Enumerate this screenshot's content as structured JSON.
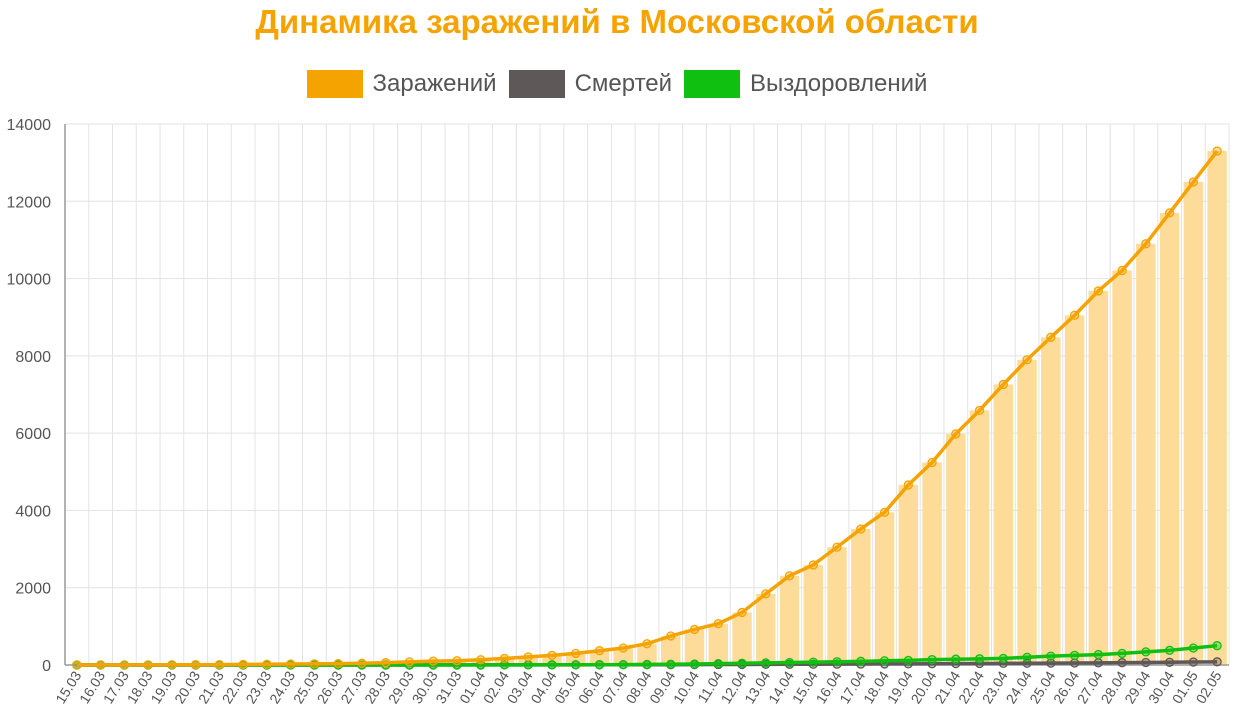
{
  "colors": {
    "title": "#f5a300",
    "infected": "#f5a300",
    "infected_bar": "#fddc9a",
    "deaths": "#5e5858",
    "recovered": "#10c010",
    "grid": "#e3e3e3",
    "axis": "#999999",
    "tick": "#555555"
  },
  "chart_data": {
    "type": "bar",
    "title": "Динамика заражений в Московской области",
    "xlabel": "",
    "ylabel": "",
    "ylim": [
      0,
      14000
    ],
    "yticks": [
      0,
      2000,
      4000,
      6000,
      8000,
      10000,
      12000,
      14000
    ],
    "grid": true,
    "legend_position": "top-center",
    "categories": [
      "15.03",
      "16.03",
      "17.03",
      "18.03",
      "19.03",
      "20.03",
      "21.03",
      "22.03",
      "23.03",
      "24.03",
      "25.03",
      "26.03",
      "27.03",
      "28.03",
      "29.03",
      "30.03",
      "31.03",
      "01.04",
      "02.04",
      "03.04",
      "04.04",
      "05.04",
      "06.04",
      "07.04",
      "08.04",
      "09.04",
      "10.04",
      "11.04",
      "12.04",
      "13.04",
      "14.04",
      "15.04",
      "16.04",
      "17.04",
      "18.04",
      "19.04",
      "20.04",
      "21.04",
      "22.04",
      "23.04",
      "24.04",
      "25.04",
      "26.04",
      "27.04",
      "28.04",
      "29.04",
      "30.04",
      "01.05",
      "02.05"
    ],
    "series": [
      {
        "name": "Заражений",
        "type": "bar+line",
        "values": [
          1,
          2,
          3,
          4,
          6,
          8,
          10,
          15,
          20,
          25,
          30,
          35,
          45,
          60,
          80,
          100,
          110,
          135,
          170,
          210,
          250,
          300,
          370,
          440,
          550,
          750,
          920,
          1070,
          1360,
          1840,
          2310,
          2590,
          3050,
          3520,
          3950,
          4660,
          5240,
          5980,
          6590,
          7260,
          7900,
          8480,
          9050,
          9680,
          10210,
          10900,
          11700,
          12500,
          13300
        ]
      },
      {
        "name": "Смертей",
        "type": "line",
        "values": [
          0,
          0,
          0,
          0,
          0,
          0,
          0,
          0,
          0,
          0,
          0,
          0,
          0,
          1,
          1,
          2,
          2,
          2,
          3,
          3,
          4,
          4,
          5,
          6,
          7,
          8,
          10,
          12,
          14,
          16,
          18,
          20,
          22,
          25,
          28,
          30,
          33,
          36,
          39,
          42,
          45,
          48,
          52,
          56,
          60,
          65,
          70,
          76,
          82
        ]
      },
      {
        "name": "Выздоровлений",
        "type": "line",
        "values": [
          0,
          0,
          0,
          0,
          0,
          0,
          0,
          0,
          0,
          0,
          0,
          0,
          0,
          0,
          0,
          1,
          1,
          2,
          3,
          4,
          5,
          6,
          8,
          10,
          15,
          20,
          25,
          35,
          45,
          55,
          65,
          75,
          85,
          95,
          110,
          120,
          140,
          150,
          160,
          170,
          200,
          230,
          250,
          270,
          300,
          340,
          380,
          440,
          500
        ]
      }
    ]
  }
}
